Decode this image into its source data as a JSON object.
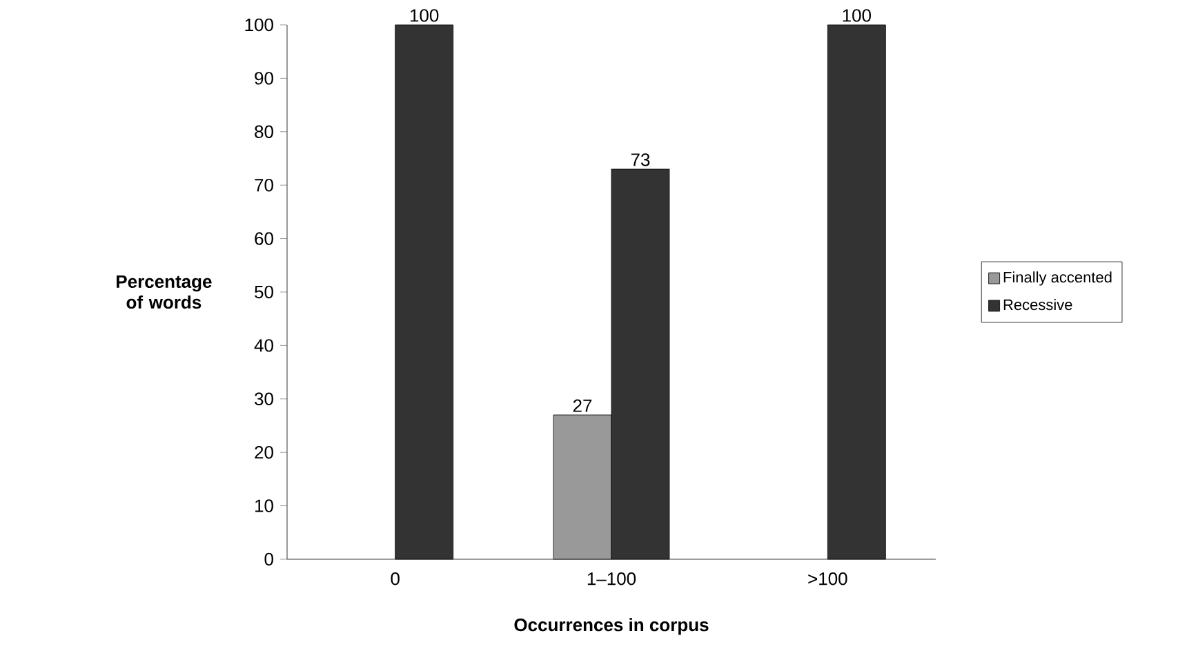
{
  "chart_data": {
    "type": "bar",
    "xlabel": "Occurrences in corpus",
    "ylabel": "Percentage of words",
    "categories": [
      "0",
      "1–100",
      ">100"
    ],
    "series": [
      {
        "name": "Finally accented",
        "color": "#999999",
        "values": [
          null,
          27,
          null
        ]
      },
      {
        "name": "Recessive",
        "color": "#333333",
        "values": [
          100,
          73,
          100
        ]
      }
    ],
    "ylim": [
      0,
      100
    ],
    "yticks": [
      0,
      10,
      20,
      30,
      40,
      50,
      60,
      70,
      80,
      90,
      100
    ],
    "data_labels": true,
    "legend": "right",
    "grid": false
  }
}
